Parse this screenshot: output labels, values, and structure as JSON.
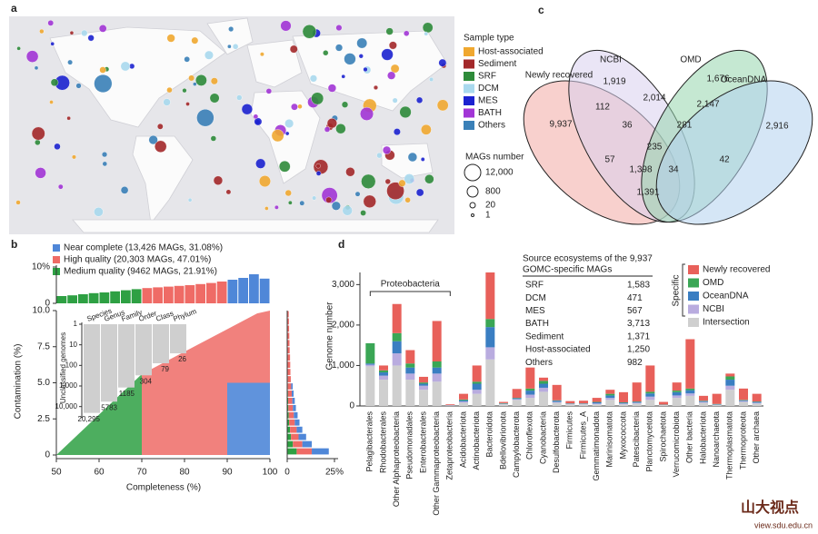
{
  "panel_labels": [
    "a",
    "b",
    "c",
    "d"
  ],
  "map": {
    "legend_title": "Sample type",
    "sample_types": [
      {
        "name": "Host-associated",
        "color": "#f0a830"
      },
      {
        "name": "Sediment",
        "color": "#a3282a"
      },
      {
        "name": "SRF",
        "color": "#2e8b3a"
      },
      {
        "name": "DCM",
        "color": "#a9d9ee"
      },
      {
        "name": "MES",
        "color": "#1c22d0"
      },
      {
        "name": "BATH",
        "color": "#a235d6"
      },
      {
        "name": "Others",
        "color": "#3a80b8"
      }
    ],
    "size_title": "MAGs number",
    "size_labels": [
      "12,000",
      "800",
      "20",
      "1"
    ]
  },
  "venn": {
    "sets": [
      {
        "name": "Newly recovered",
        "color": "#f2a9a4"
      },
      {
        "name": "NCBI",
        "color": "#d9d0ee"
      },
      {
        "name": "OMD",
        "color": "#95d6ad"
      },
      {
        "name": "OceanDNA",
        "color": "#b2d2ee"
      }
    ],
    "regions": [
      "9,937",
      "1,919",
      "1,676",
      "2,916",
      "112",
      "2,014",
      "2,147",
      "36",
      "281",
      "235",
      "57",
      "1,398",
      "34",
      "42",
      "1,391"
    ]
  },
  "table": {
    "title": [
      "Source ecosystems of the 9,937",
      "GOMC-specific MAGs"
    ],
    "rows": [
      [
        "SRF",
        "1,583"
      ],
      [
        "DCM",
        "471"
      ],
      [
        "MES",
        "567"
      ],
      [
        "BATH",
        "3,713"
      ],
      [
        "Sediment",
        "1,371"
      ],
      [
        "Host-associated",
        "1,250"
      ],
      [
        "Others",
        "982"
      ]
    ]
  },
  "watermark": {
    "text": "山大视点",
    "url": "view.sdu.edu.cn"
  },
  "chart_data": [
    {
      "type": "quality",
      "xlabel": "Completeness (%)",
      "ylabel": "Contamination (%)",
      "xlim": [
        50,
        100
      ],
      "xticks": [
        50,
        60,
        70,
        80,
        90,
        100
      ],
      "ylim": [
        0,
        10
      ],
      "yticks": [
        0,
        2.5,
        {
          "value": 5,
          "label": "5.0"
        },
        7.5,
        {
          "value": 10,
          "label": "10.0"
        }
      ],
      "series": [
        {
          "name": "Near complete (13,426 MAGs, 31.08%)",
          "color": "#4f87d8"
        },
        {
          "name": "High quality (20,303 MAGs, 47.01%)",
          "color": "#ef6b66"
        },
        {
          "name": "Medium quality (9462 MAGs, 21.91%)",
          "color": "#2ea043"
        }
      ],
      "top_hist": {
        "bins": [
          50,
          52.5,
          55,
          57.5,
          60,
          62.5,
          65,
          67.5,
          70,
          72.5,
          75,
          77.5,
          80,
          82.5,
          85,
          87.5,
          90,
          92.5,
          95,
          97.5,
          100
        ],
        "values": [
          2,
          2.2,
          2.5,
          2.8,
          3,
          3.3,
          3.6,
          3.9,
          4.2,
          4.4,
          4.6,
          4.8,
          5,
          5.3,
          5.6,
          6,
          6.5,
          7,
          8,
          6.8
        ],
        "colors": [
          "#2ea043",
          "#2ea043",
          "#2ea043",
          "#2ea043",
          "#2ea043",
          "#2ea043",
          "#2ea043",
          "#2ea043",
          "#ef6b66",
          "#ef6b66",
          "#ef6b66",
          "#ef6b66",
          "#ef6b66",
          "#ef6b66",
          "#ef6b66",
          "#ef6b66",
          "#4f87d8",
          "#4f87d8",
          "#4f87d8",
          "#4f87d8"
        ],
        "ylim": [
          0,
          10
        ],
        "yticks": [
          0,
          {
            "value": 10,
            "label": "10%"
          }
        ]
      },
      "right_hist": {
        "bins": [
          0,
          0.5,
          1,
          1.5,
          2,
          2.5,
          3,
          3.5,
          4,
          4.5,
          5,
          5.5,
          6,
          6.5,
          7,
          7.5,
          8,
          8.5,
          9,
          9.5,
          10
        ],
        "xlim": [
          0,
          25
        ],
        "xticks": [
          0,
          {
            "value": 25,
            "label": "25%"
          }
        ],
        "series": [
          {
            "color": "#2ea043",
            "values": [
              5,
              3,
              2,
              1.5,
              1,
              0.8,
              0.6,
              0.5,
              0.4,
              0.3,
              0.3,
              0.2,
              0.2,
              0.2,
              0.1,
              0.1,
              0.1,
              0.1,
              0.1,
              0.1
            ]
          },
          {
            "color": "#ef6b66",
            "values": [
              8,
              5,
              4,
              3.5,
              3,
              2.7,
              2.4,
              2.2,
              2,
              1.8,
              1.6,
              1.5,
              1.4,
              1.3,
              1.2,
              1.1,
              1,
              0.9,
              0.8,
              0.7
            ]
          },
          {
            "color": "#4f87d8",
            "values": [
              9,
              5,
              4,
              3,
              2.5,
              2,
              1.6,
              1.3,
              1,
              0.8,
              0,
              0,
              0,
              0,
              0,
              0,
              0,
              0,
              0,
              0
            ]
          }
        ]
      }
    },
    {
      "type": "bar",
      "ylabel": "Unclassified genomes",
      "log": true,
      "reversed": true,
      "color": "#cfcfcf",
      "categories": [
        "Species",
        "Genus",
        "Family",
        "Order",
        "Class",
        "Phylum"
      ],
      "values": [
        20295,
        5783,
        1185,
        304,
        79,
        26
      ],
      "value_labels": [
        "20,295",
        "5783",
        "1185",
        "304",
        "79",
        "26"
      ],
      "ylim": [
        1,
        30000
      ],
      "yticks": [
        1,
        10,
        100,
        {
          "value": 1000,
          "label": "1,000"
        },
        {
          "value": 10000,
          "label": "10,000"
        }
      ]
    },
    {
      "type": "stacked_bar",
      "ylabel": "Genome number",
      "ylim": [
        0,
        3300
      ],
      "yticks": [
        0,
        {
          "value": 1000,
          "label": "1,000"
        },
        {
          "value": 2000,
          "label": "2,000"
        },
        {
          "value": 3000,
          "label": "3,000"
        }
      ],
      "group_label": "Proteobacteria",
      "legend_group": "Specific",
      "categories": [
        "Pelagibacterales",
        "Rhodobacterales",
        "Other Alphaproteobacteria",
        "Pseudomonadales",
        "Enterobacterales",
        "Other Gammaproteobacteria",
        "Zetaproteobacteria",
        "Acidobacteriota",
        "Actinobacteriota",
        "Bacteroidota",
        "Bdellovibrionota",
        "Campylobacterota",
        "Chloroflexota",
        "Cyanobacteria",
        "Desulfobacterota",
        "Firmicutes",
        "Firmicutes_A",
        "Gemmatimonadota",
        "Marinisomatota",
        "Myxococcota",
        "Patescibacteria",
        "Planctomycetota",
        "Spirochaetota",
        "Verrucomicrobiota",
        "Other bacteria",
        "Halobacteriota",
        "Nanoarchaeota",
        "Thermoplasmatota",
        "Thermoproteota",
        "Other archaea"
      ],
      "series": [
        {
          "name": "Intersection",
          "color": "#cfcfcf",
          "values": [
            980,
            650,
            1000,
            650,
            400,
            600,
            10,
            80,
            300,
            1150,
            40,
            150,
            200,
            350,
            80,
            40,
            40,
            40,
            150,
            40,
            60,
            150,
            20,
            200,
            250,
            80,
            20,
            400,
            100,
            60
          ]
        },
        {
          "name": "NCBI",
          "color": "#b9acdf",
          "values": [
            40,
            100,
            300,
            150,
            100,
            200,
            5,
            30,
            100,
            300,
            10,
            20,
            80,
            100,
            20,
            10,
            10,
            20,
            50,
            20,
            20,
            80,
            5,
            60,
            60,
            20,
            10,
            100,
            20,
            20
          ]
        },
        {
          "name": "OceanDNA",
          "color": "#3a7ec2",
          "values": [
            30,
            80,
            300,
            150,
            50,
            150,
            5,
            30,
            150,
            500,
            10,
            20,
            100,
            100,
            30,
            10,
            10,
            30,
            60,
            20,
            20,
            80,
            5,
            80,
            80,
            20,
            10,
            150,
            20,
            20
          ]
        },
        {
          "name": "OMD",
          "color": "#3aa655",
          "values": [
            500,
            50,
            200,
            100,
            30,
            150,
            0,
            20,
            50,
            200,
            10,
            10,
            50,
            70,
            10,
            5,
            5,
            10,
            40,
            10,
            10,
            40,
            5,
            40,
            40,
            10,
            10,
            80,
            10,
            10
          ]
        },
        {
          "name": "Newly recovered",
          "color": "#e8605a",
          "values": [
            0,
            120,
            720,
            330,
            140,
            1000,
            20,
            140,
            400,
            1150,
            30,
            220,
            520,
            80,
            380,
            55,
            65,
            100,
            100,
            250,
            470,
            650,
            65,
            200,
            1220,
            120,
            250,
            70,
            280,
            190
          ]
        }
      ]
    }
  ]
}
